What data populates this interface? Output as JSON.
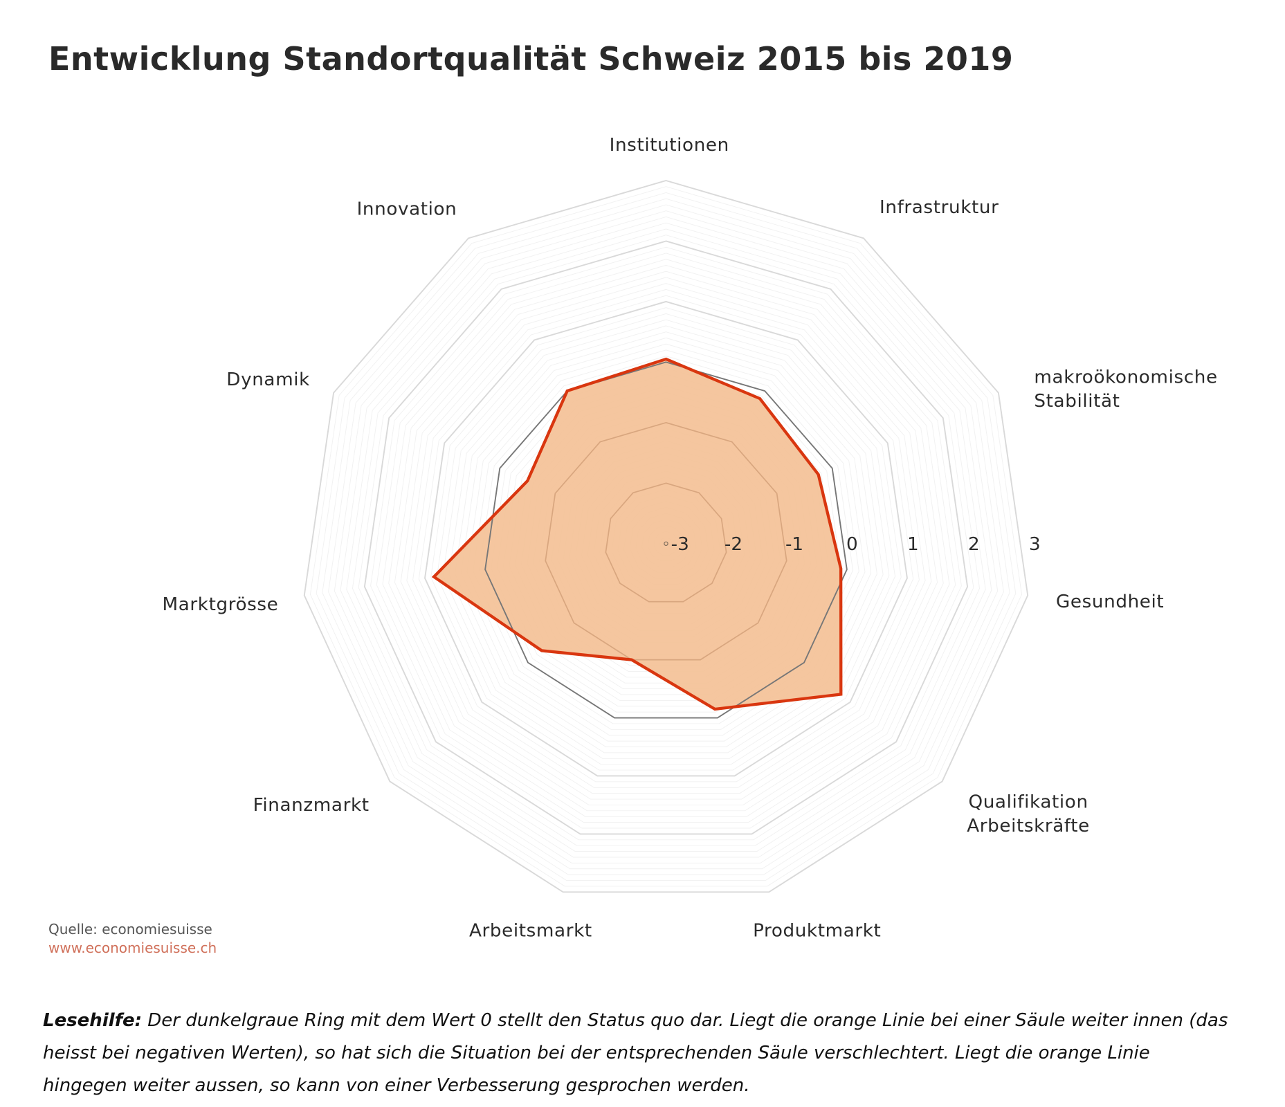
{
  "title": "Entwicklung Standortqualität Schweiz 2015 bis 2019",
  "source": {
    "label": "Quelle: economiesuisse",
    "url": "www.economiesuisse.ch"
  },
  "note": {
    "lead": "Lesehilfe:",
    "text": "Der dunkelgraue Ring mit dem Wert 0 stellt den Status quo dar. Liegt die orange Linie bei einer Säule weiter innen (das heisst bei negativen Werten), so hat sich die Situation bei der entsprechenden Säule verschlechtert. Liegt die orange Linie hingegen weiter aussen, so kann von einer Verbesserung gesprochen werden."
  },
  "chart_data": {
    "type": "radar",
    "categories": [
      "Institutionen",
      "Infrastruktur",
      "makroökonomische Stabilität",
      "Gesundheit",
      "Qualifikation Arbeitskräfte",
      "Produktmarkt",
      "Arbeitsmarkt",
      "Finanzmarkt",
      "Marktgrösse",
      "Dynamik",
      "Innovation"
    ],
    "category_lines": [
      [
        "Institutionen"
      ],
      [
        "Infrastruktur"
      ],
      [
        "makroökonomische",
        "Stabilität"
      ],
      [
        "Gesundheit"
      ],
      [
        "Qualifikation",
        "Arbeitskräfte"
      ],
      [
        "Produktmarkt"
      ],
      [
        "Arbeitsmarkt"
      ],
      [
        "Finanzmarkt"
      ],
      [
        "Marktgrösse"
      ],
      [
        "Dynamik"
      ],
      [
        "Innovation"
      ]
    ],
    "series": [
      {
        "values": [
          0.05,
          -0.15,
          -0.25,
          -0.1,
          0.8,
          -0.15,
          -1.0,
          -0.3,
          0.85,
          -0.5,
          0.0
        ],
        "color": "#d9360f",
        "fill": "#f4c197"
      }
    ],
    "reference_ring": {
      "value": 0,
      "color": "#777777"
    },
    "rlim": [
      -3,
      3
    ],
    "ticks": [
      "-3",
      "-2",
      "-1",
      "0",
      "1",
      "2",
      "3"
    ],
    "grid": true
  }
}
